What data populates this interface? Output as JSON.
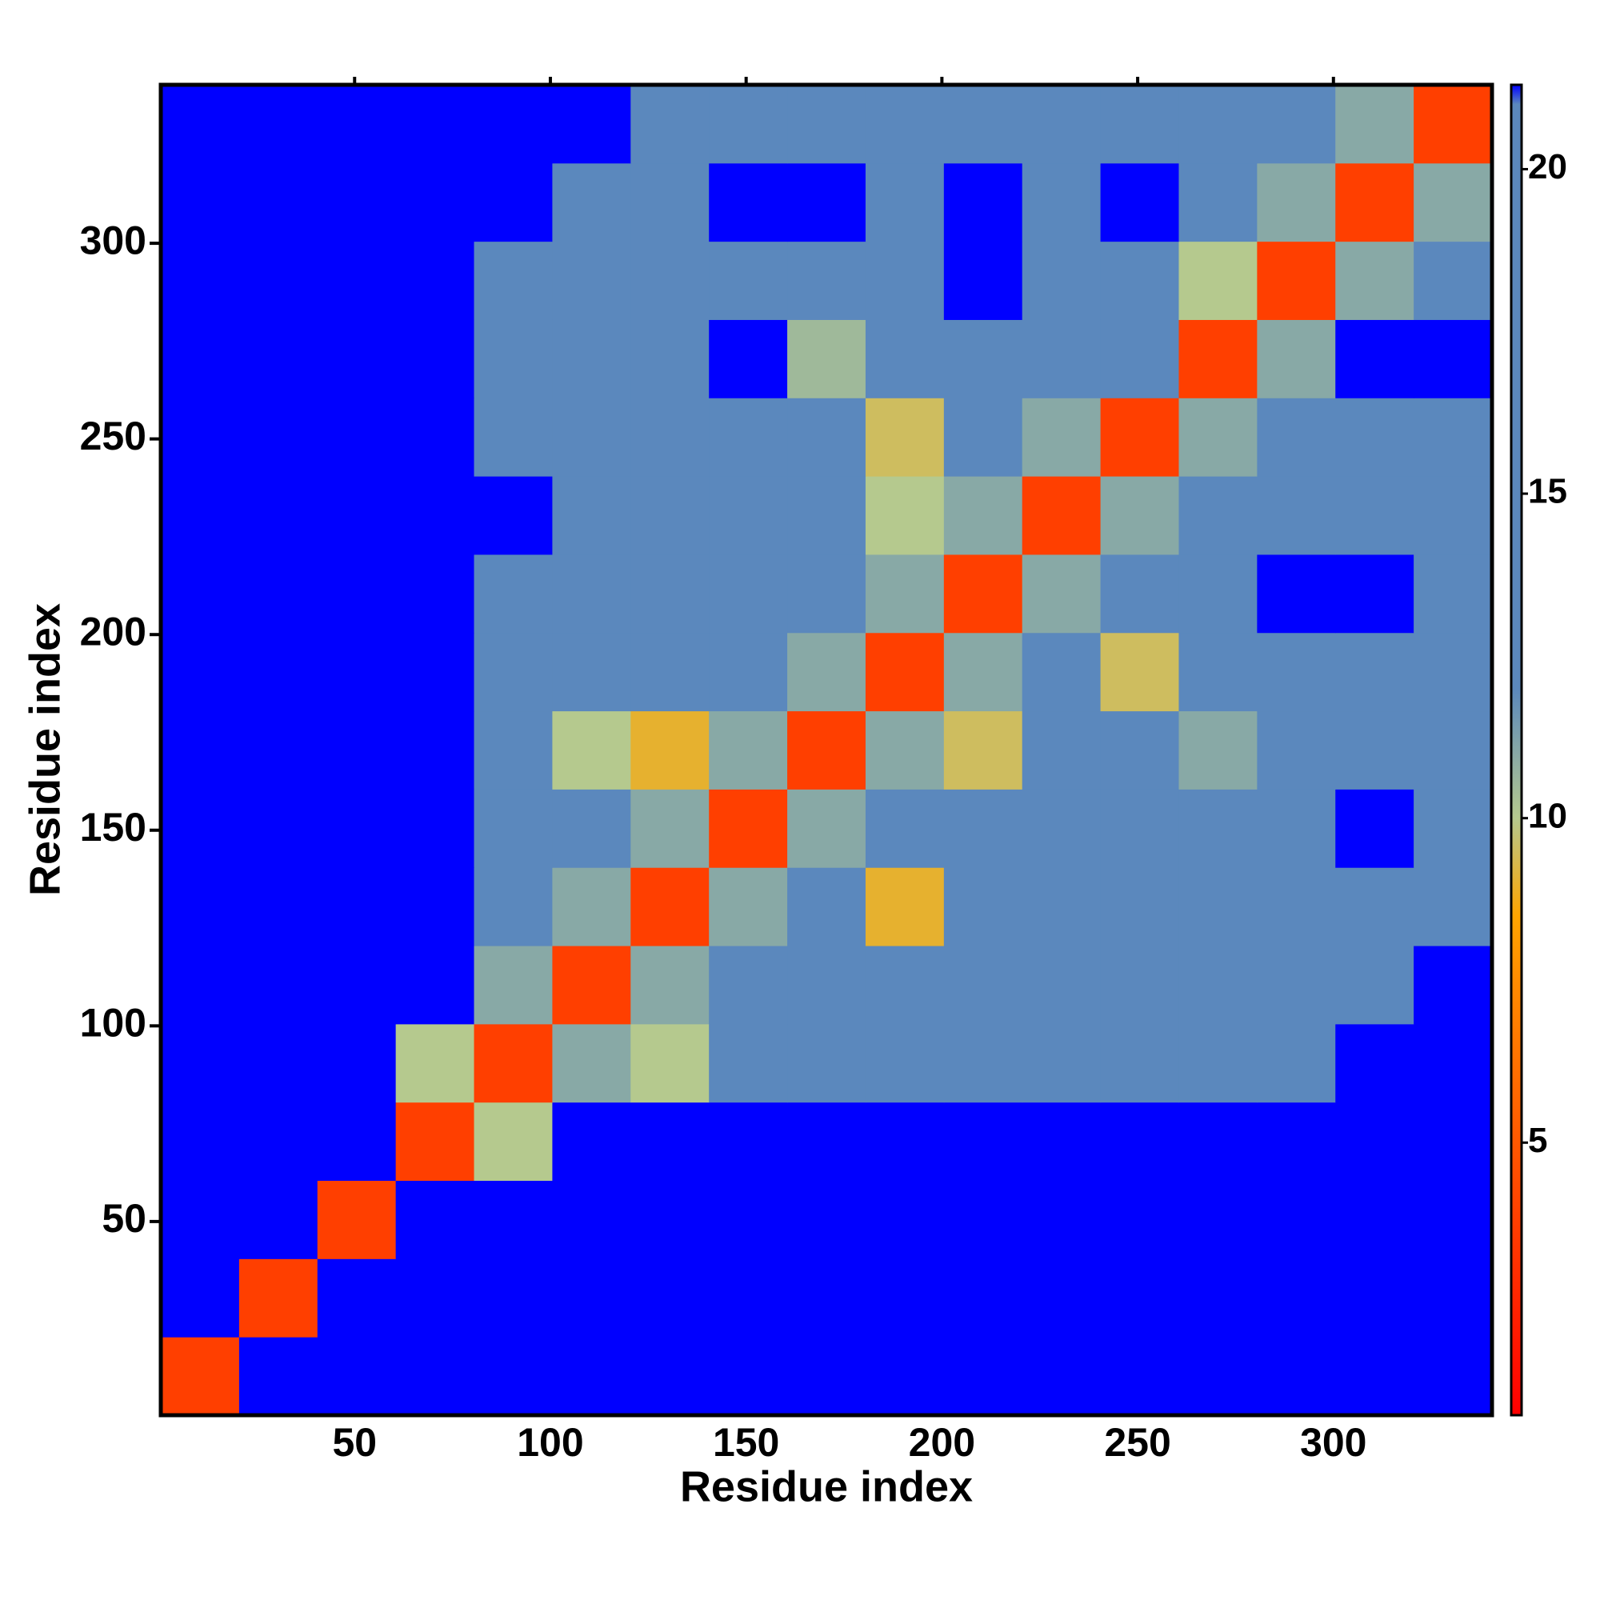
{
  "chart_data": {
    "type": "heatmap",
    "xlabel": "Residue index",
    "ylabel": "Residue index",
    "xlim": [
      0.5,
      340.5
    ],
    "ylim": [
      0.5,
      340.5
    ],
    "xticks": [
      50,
      100,
      150,
      200,
      250,
      300
    ],
    "yticks": [
      50,
      100,
      150,
      200,
      250,
      300
    ],
    "zlim": [
      0.8,
      21.3
    ],
    "zticks": [
      5,
      10,
      15,
      20
    ],
    "colorscale": [
      [
        0.8,
        "#ff0000"
      ],
      [
        7.5,
        "#ff8c00"
      ],
      [
        8.5,
        "#ffa500"
      ],
      [
        10,
        "#b5c98e"
      ],
      [
        12,
        "#5b88bd"
      ],
      [
        21,
        "#5b88bd"
      ],
      [
        21.3,
        "#0000ff"
      ]
    ],
    "z": [
      [
        3.8,
        21.3,
        21.3,
        21.3,
        21.3,
        21.3,
        21.3,
        21.3,
        21.3,
        21.3,
        21.3,
        21.3,
        21.3,
        21.3,
        21.3,
        21.3,
        21.3
      ],
      [
        21.3,
        3.8,
        21.3,
        21.3,
        21.3,
        21.3,
        21.3,
        21.3,
        21.3,
        21.3,
        21.3,
        21.3,
        21.3,
        21.3,
        21.3,
        21.3,
        21.3
      ],
      [
        21.3,
        21.3,
        3.8,
        21.3,
        21.3,
        21.3,
        21.3,
        21.3,
        21.3,
        21.3,
        21.3,
        21.3,
        21.3,
        21.3,
        21.3,
        21.3,
        21.3
      ],
      [
        21.3,
        21.3,
        21.3,
        3.8,
        10,
        21.3,
        21.3,
        21.3,
        21.3,
        21.3,
        21.3,
        21.3,
        21.3,
        21.3,
        21.3,
        21.3,
        21.3
      ],
      [
        21.3,
        21.3,
        21.3,
        10,
        3.8,
        11,
        10,
        14,
        15.5,
        12,
        15.5,
        15.5,
        15.5,
        12,
        15.5,
        21.3,
        21.3
      ],
      [
        21.3,
        21.3,
        21.3,
        21.3,
        11,
        3.8,
        11,
        12,
        13,
        15.5,
        15.5,
        15.5,
        15.5,
        15.5,
        15.5,
        15.5,
        21.3
      ],
      [
        21.3,
        21.3,
        21.3,
        21.3,
        12,
        11,
        3.8,
        11,
        12,
        9,
        12,
        15.5,
        15.5,
        12,
        13,
        15.5,
        15.5
      ],
      [
        21.3,
        21.3,
        21.3,
        21.3,
        12,
        14,
        11,
        3.8,
        11,
        15.5,
        13,
        15.5,
        15.5,
        15.5,
        15.5,
        21.3,
        15.5
      ],
      [
        21.3,
        21.3,
        21.3,
        21.3,
        12,
        10,
        9,
        11,
        3.8,
        11,
        9.5,
        12,
        13,
        11,
        13,
        15.5,
        15.5
      ],
      [
        21.3,
        21.3,
        21.3,
        21.3,
        13,
        12,
        12,
        13,
        11,
        3.8,
        11,
        12,
        9.5,
        12,
        15.5,
        15.5,
        15.5
      ],
      [
        21.3,
        21.3,
        21.3,
        21.3,
        14,
        12,
        15.5,
        13,
        12,
        11,
        3.8,
        11,
        12,
        15.5,
        21.3,
        21.3,
        15.5
      ],
      [
        21.3,
        21.3,
        21.3,
        21.3,
        21.3,
        15.5,
        15.5,
        15.5,
        12,
        10,
        11,
        3.8,
        11,
        15.5,
        14,
        15.5,
        15.5
      ],
      [
        21.3,
        21.3,
        21.3,
        21.3,
        15.5,
        15.5,
        13,
        15.5,
        12,
        9.5,
        12,
        11,
        3.8,
        11,
        15.5,
        15.5,
        15.5
      ],
      [
        21.3,
        21.3,
        21.3,
        21.3,
        12,
        15.5,
        12,
        21.3,
        10.5,
        12,
        15.5,
        15.5,
        12,
        3.8,
        11,
        21.3,
        21.3
      ],
      [
        21.3,
        21.3,
        21.3,
        21.3,
        15.5,
        15.5,
        12,
        15.5,
        12,
        15.5,
        21.3,
        15.5,
        15.5,
        10,
        3.8,
        11,
        12
      ],
      [
        21.3,
        21.3,
        21.3,
        21.3,
        21.3,
        15.5,
        15.5,
        21.3,
        21.3,
        15.5,
        21.3,
        15.5,
        21.3,
        12,
        11,
        3.8,
        11
      ],
      [
        21.3,
        21.3,
        21.3,
        21.3,
        21.3,
        21.3,
        15.5,
        15.5,
        15.5,
        15.5,
        15.5,
        15.5,
        15.5,
        12,
        12,
        11,
        3.8
      ]
    ]
  }
}
